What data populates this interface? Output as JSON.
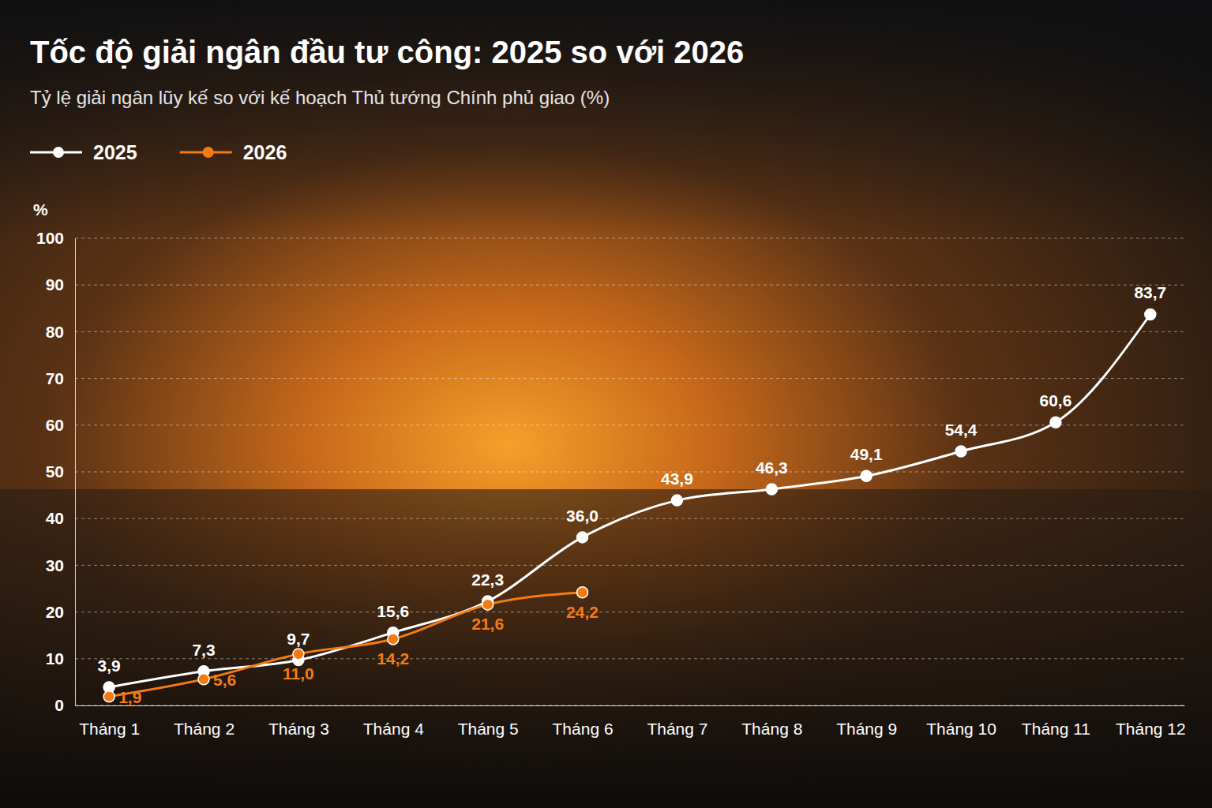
{
  "chart_data": {
    "type": "line",
    "title": "Tốc độ giải ngân đầu tư công: 2025 so với 2026",
    "subtitle": "Tỷ lệ giải ngân lũy kế so với kế hoạch Thủ tướng Chính phủ giao (%)",
    "y_label": "%",
    "categories": [
      "Tháng 1",
      "Tháng 2",
      "Tháng 3",
      "Tháng 4",
      "Tháng 5",
      "Tháng 6",
      "Tháng 7",
      "Tháng 8",
      "Tháng 9",
      "Tháng 10",
      "Tháng 11",
      "Tháng 12"
    ],
    "series": [
      {
        "name": "2025",
        "color": "#ffffff",
        "marker": "circle",
        "values": [
          3.9,
          7.3,
          9.7,
          15.6,
          22.3,
          36.0,
          43.9,
          46.3,
          49.1,
          54.4,
          60.6,
          83.7
        ],
        "value_labels": [
          "3,9",
          "7,3",
          "9,7",
          "15,6",
          "22,3",
          "36,0",
          "43,9",
          "46,3",
          "49,1",
          "54,4",
          "60,6",
          "83,7"
        ]
      },
      {
        "name": "2026",
        "color": "#f47b12",
        "marker": "circle",
        "values": [
          1.9,
          5.6,
          11.0,
          14.2,
          21.6,
          24.2,
          null,
          null,
          null,
          null,
          null,
          null
        ],
        "value_labels": [
          "1,9",
          "5,6",
          "11,0",
          "14,2",
          "21,6",
          "24,2",
          null,
          null,
          null,
          null,
          null,
          null
        ]
      }
    ],
    "ylim": [
      0,
      100
    ],
    "yticks": [
      0,
      10,
      20,
      30,
      40,
      50,
      60,
      70,
      80,
      90,
      100
    ],
    "grid": true,
    "legend": "top-left",
    "data_labels": true
  }
}
